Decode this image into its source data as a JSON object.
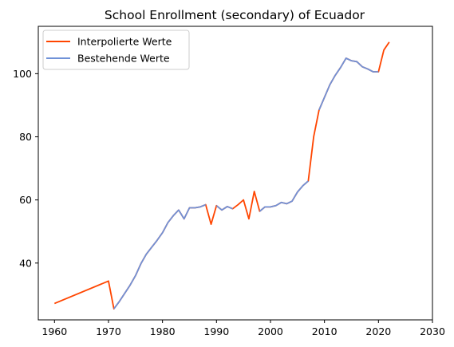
{
  "chart_data": {
    "type": "line",
    "title": "School Enrollment (secondary) of Ecuador",
    "xlabel": "",
    "ylabel": "",
    "xlim": [
      1957,
      2030
    ],
    "ylim": [
      22,
      115
    ],
    "xticks": [
      1960,
      1970,
      1980,
      1990,
      2000,
      2010,
      2020,
      2030
    ],
    "yticks": [
      40,
      60,
      80,
      100
    ],
    "grid": false,
    "legend_position": "top-left",
    "series": [
      {
        "name": "Interpolierte Werte",
        "color": "#ff4500",
        "x": [
          1960,
          1970,
          1971,
          1972,
          1973,
          1974,
          1975,
          1976,
          1977,
          1978,
          1979,
          1980,
          1981,
          1982,
          1983,
          1984,
          1985,
          1986,
          1987,
          1988,
          1989,
          1990,
          1991,
          1992,
          1993,
          1994,
          1995,
          1996,
          1997,
          1998,
          1999,
          2000,
          2001,
          2002,
          2003,
          2004,
          2005,
          2006,
          2007,
          2008,
          2009,
          2010,
          2011,
          2012,
          2013,
          2014,
          2015,
          2016,
          2017,
          2018,
          2019,
          2020,
          2021,
          2022
        ],
        "y": [
          27.2,
          34.3,
          25.5,
          27.8,
          30.4,
          33.0,
          36.0,
          39.8,
          42.8,
          45.0,
          47.2,
          49.6,
          52.8,
          55.0,
          56.8,
          54.0,
          57.5,
          57.5,
          57.8,
          58.5,
          52.3,
          58.2,
          56.8,
          57.9,
          57.2,
          58.5,
          60.0,
          54.0,
          62.7,
          56.4,
          57.8,
          57.8,
          58.2,
          59.2,
          58.8,
          59.6,
          62.5,
          64.5,
          66.0,
          80.0,
          88.5,
          92.5,
          96.5,
          99.5,
          102.0,
          104.9,
          104.1,
          103.8,
          102.2,
          101.5,
          100.6,
          100.6,
          107.5,
          110.0
        ]
      },
      {
        "name": "Bestehende Werte",
        "color": "#7092d8",
        "x": [
          1971,
          1972,
          1973,
          1974,
          1975,
          1976,
          1977,
          1978,
          1979,
          1980,
          1981,
          1982,
          1983,
          1984,
          1985,
          1986,
          1987,
          1988,
          null,
          1990,
          1991,
          1992,
          1993,
          null,
          1998,
          1999,
          2000,
          2001,
          2002,
          2003,
          2004,
          2005,
          2006,
          2007,
          null,
          2009,
          2010,
          2011,
          2012,
          2013,
          2014,
          2015,
          2016,
          2017,
          2018,
          2019,
          2020
        ],
        "y": [
          25.5,
          27.8,
          30.4,
          33.0,
          36.0,
          39.8,
          42.8,
          45.0,
          47.2,
          49.6,
          52.8,
          55.0,
          56.8,
          54.0,
          57.5,
          57.5,
          57.8,
          58.5,
          null,
          58.2,
          56.8,
          57.9,
          57.2,
          null,
          56.4,
          57.8,
          57.8,
          58.2,
          59.2,
          58.8,
          59.6,
          62.5,
          64.5,
          66.0,
          null,
          88.5,
          92.5,
          96.5,
          99.5,
          102.0,
          104.9,
          104.1,
          103.8,
          102.2,
          101.5,
          100.6,
          100.6
        ]
      }
    ]
  }
}
